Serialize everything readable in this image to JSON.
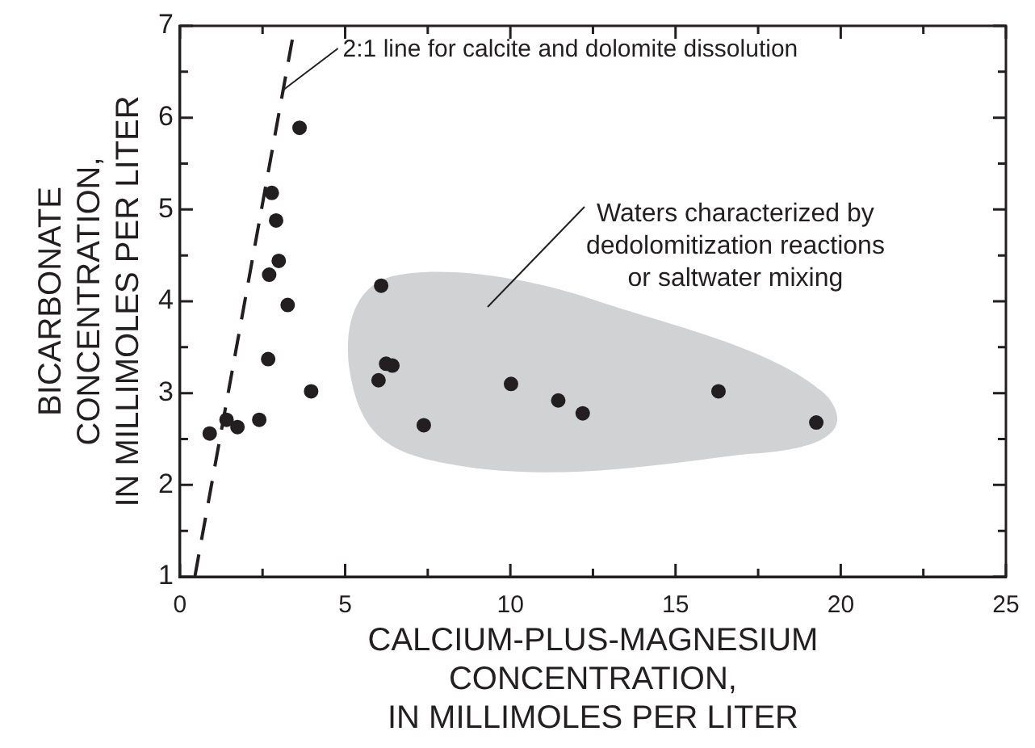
{
  "chart_data": {
    "type": "scatter",
    "xlabel": "CALCIUM-PLUS-MAGNESIUM\nCONCENTRATION,\nIN MILLIMOLES PER LITER",
    "ylabel": "BICARBONATE\nCONCENTRATION,\nIN MILLIMOLES PER LITER",
    "xlim": [
      0,
      25
    ],
    "ylim": [
      1,
      7
    ],
    "xticks": [
      0,
      {
        "value": 2.5,
        "label": null
      },
      5,
      {
        "value": 7.5,
        "label": null
      },
      10,
      {
        "value": 12.5,
        "label": null
      },
      15,
      {
        "value": 17.5,
        "label": null
      },
      20,
      {
        "value": 22.5,
        "label": null
      },
      25
    ],
    "yticks": [
      1,
      {
        "value": 1.5,
        "label": null
      },
      2,
      {
        "value": 2.5,
        "label": null
      },
      3,
      {
        "value": 3.5,
        "label": null
      },
      4,
      {
        "value": 4.5,
        "label": null
      },
      5,
      {
        "value": 5.5,
        "label": null
      },
      6,
      {
        "value": 6.5,
        "label": null
      },
      7
    ],
    "grid": false,
    "legend": false,
    "marker": "circle",
    "series": [
      {
        "type": "scatter",
        "color": "#231f20",
        "x": [
          0.9,
          1.41,
          1.74,
          2.4,
          2.67,
          2.78,
          2.91,
          2.7,
          2.99,
          3.26,
          3.62,
          3.97,
          6.09,
          6.01,
          6.24,
          6.43,
          7.38,
          10.02,
          11.45,
          12.19,
          16.3,
          19.26
        ],
        "values": [
          2.56,
          2.71,
          2.63,
          2.71,
          3.37,
          5.18,
          4.88,
          4.29,
          4.44,
          3.96,
          5.89,
          3.02,
          4.17,
          3.14,
          3.32,
          3.3,
          2.65,
          3.1,
          2.92,
          2.78,
          3.02,
          2.68
        ]
      },
      {
        "type": "line",
        "color": "#231f20",
        "line_style": "dashed",
        "marker": "none",
        "x": [
          0.45,
          3.4
        ],
        "values": [
          1,
          6.85
        ]
      }
    ],
    "annotations": [
      {
        "text": "2:1 line for calcite and dolomite dissolution",
        "x": 3.12,
        "y": 6.3
      },
      "Waters characterized by\ndedolomitization reactions\nor saltwater mixing"
    ]
  }
}
